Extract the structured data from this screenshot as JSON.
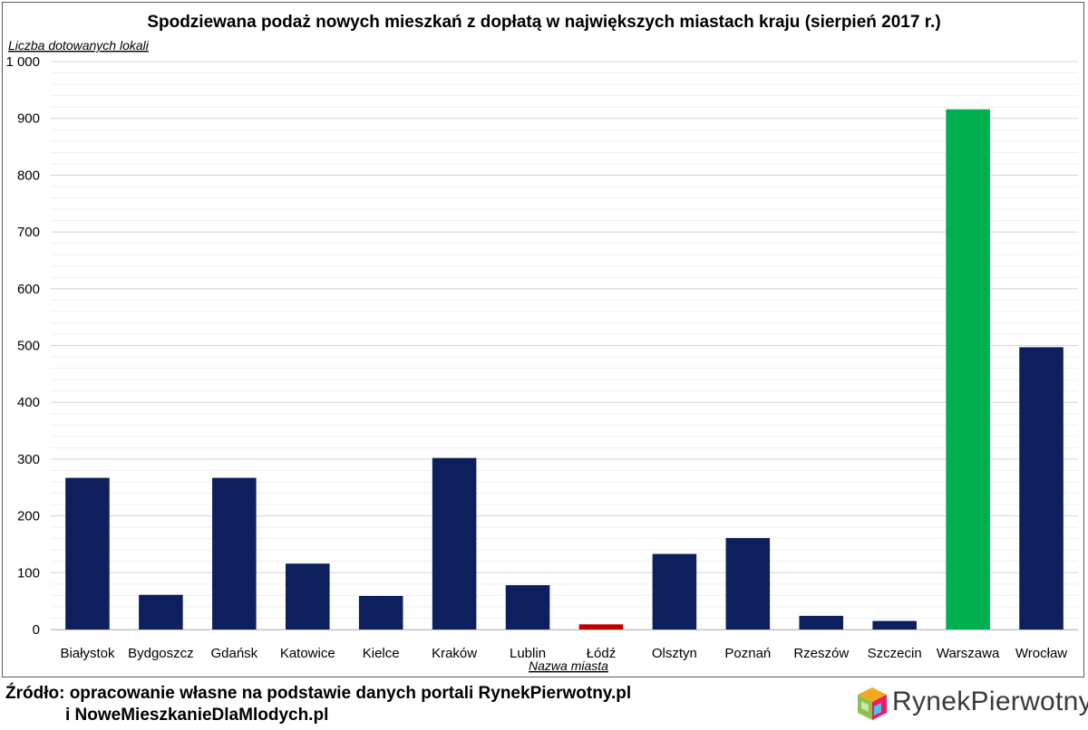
{
  "chart_data": {
    "type": "bar",
    "title": "Spodziewana podaż nowych mieszkań z dopłatą w największych miastach kraju (sierpień 2017 r.)",
    "ylabel": "Liczba dotowanych lokali",
    "xlabel": "Nazwa miasta",
    "ylim": [
      0,
      1000
    ],
    "yticks": [
      0,
      100,
      200,
      300,
      400,
      500,
      600,
      700,
      800,
      900,
      1000
    ],
    "ytick_labels": [
      "0",
      "100",
      "200",
      "300",
      "400",
      "500",
      "600",
      "700",
      "800",
      "900",
      "1 000"
    ],
    "grid": true,
    "legend": false,
    "categories": [
      "Białystok",
      "Bydgoszcz",
      "Gdańsk",
      "Katowice",
      "Kielce",
      "Kraków",
      "Lublin",
      "Łódź",
      "Olsztyn",
      "Poznań",
      "Rzeszów",
      "Szczecin",
      "Warszawa",
      "Wrocław"
    ],
    "values": [
      267,
      61,
      267,
      116,
      59,
      302,
      78,
      9,
      133,
      161,
      24,
      15,
      916,
      497
    ],
    "colors": [
      "#0d1f5c",
      "#0d1f5c",
      "#0d1f5c",
      "#0d1f5c",
      "#0d1f5c",
      "#0d1f5c",
      "#0d1f5c",
      "#c00000",
      "#0d1f5c",
      "#0d1f5c",
      "#0d1f5c",
      "#0d1f5c",
      "#00b050",
      "#0d1f5c"
    ]
  },
  "source": {
    "line1": "Źródło: opracowanie własne na podstawie danych portali RynekPierwotny.pl",
    "line2": "i NoweMieszkanieDlaMlodych.pl"
  },
  "logo": {
    "text_part1": "Rynek",
    "text_part2": "Pierwotny",
    "icon": "cube-house-icon"
  }
}
